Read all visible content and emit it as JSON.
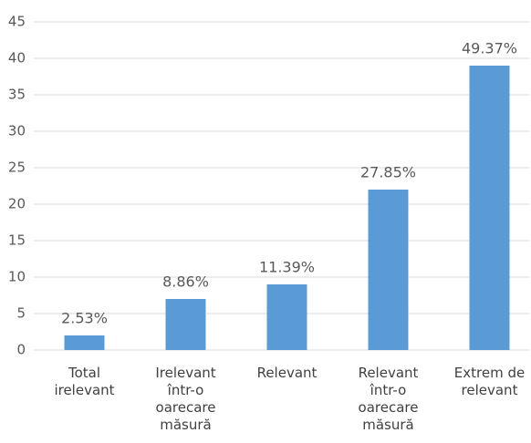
{
  "chart_data": {
    "type": "bar",
    "categories": [
      "Total irelevant",
      "Irelevant într-o oarecare măsură",
      "Relevant",
      "Relevant într-o oarecare măsură",
      "Extrem de relevant"
    ],
    "values": [
      2,
      7,
      9,
      22,
      39
    ],
    "value_labels": [
      "2.53%",
      "8.86%",
      "11.39%",
      "27.85%",
      "49.37%"
    ],
    "color": "#5b9bd5",
    "ylim": [
      0,
      45
    ],
    "yticks": [
      0,
      5,
      10,
      15,
      20,
      25,
      30,
      35,
      40,
      45
    ],
    "grid": true
  }
}
